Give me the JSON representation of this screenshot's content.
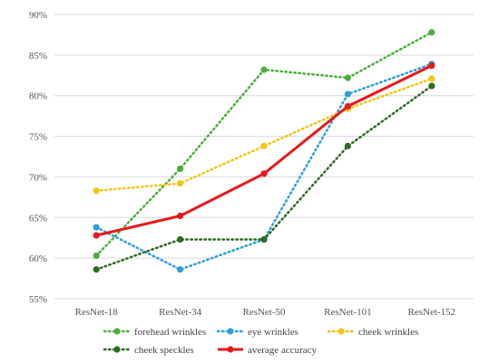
{
  "chart_data": {
    "type": "line",
    "title": "",
    "xlabel": "",
    "ylabel": "",
    "categories": [
      "ResNet-18",
      "ResNet-34",
      "ResNet-50",
      "ResNet-101",
      "ResNet-152"
    ],
    "ylim": [
      55,
      90
    ],
    "yticks": [
      "55%",
      "60%",
      "65%",
      "70%",
      "75%",
      "80%",
      "85%",
      "90%"
    ],
    "ytick_values": [
      55,
      60,
      65,
      70,
      75,
      80,
      85,
      90
    ],
    "grid": true,
    "legend_position": "bottom",
    "series": [
      {
        "name": "forehead wrinkles",
        "color": "#4caf3c",
        "style": "dotted",
        "values": [
          60.3,
          71.0,
          83.2,
          82.2,
          87.8
        ]
      },
      {
        "name": "eye wrinkles",
        "color": "#2f9fdc",
        "style": "dotted",
        "values": [
          63.8,
          58.6,
          62.3,
          80.2,
          83.9
        ]
      },
      {
        "name": "cheek wrinkles",
        "color": "#f5c518",
        "style": "dotted",
        "values": [
          68.3,
          69.2,
          73.8,
          78.4,
          82.1
        ]
      },
      {
        "name": "cheek speckles",
        "color": "#2e6b22",
        "style": "dotted",
        "values": [
          58.6,
          62.3,
          62.3,
          73.8,
          81.2
        ]
      },
      {
        "name": "average accuracy",
        "color": "#e8191d",
        "style": "solid",
        "values": [
          62.8,
          65.2,
          70.4,
          78.7,
          83.7
        ]
      }
    ]
  }
}
